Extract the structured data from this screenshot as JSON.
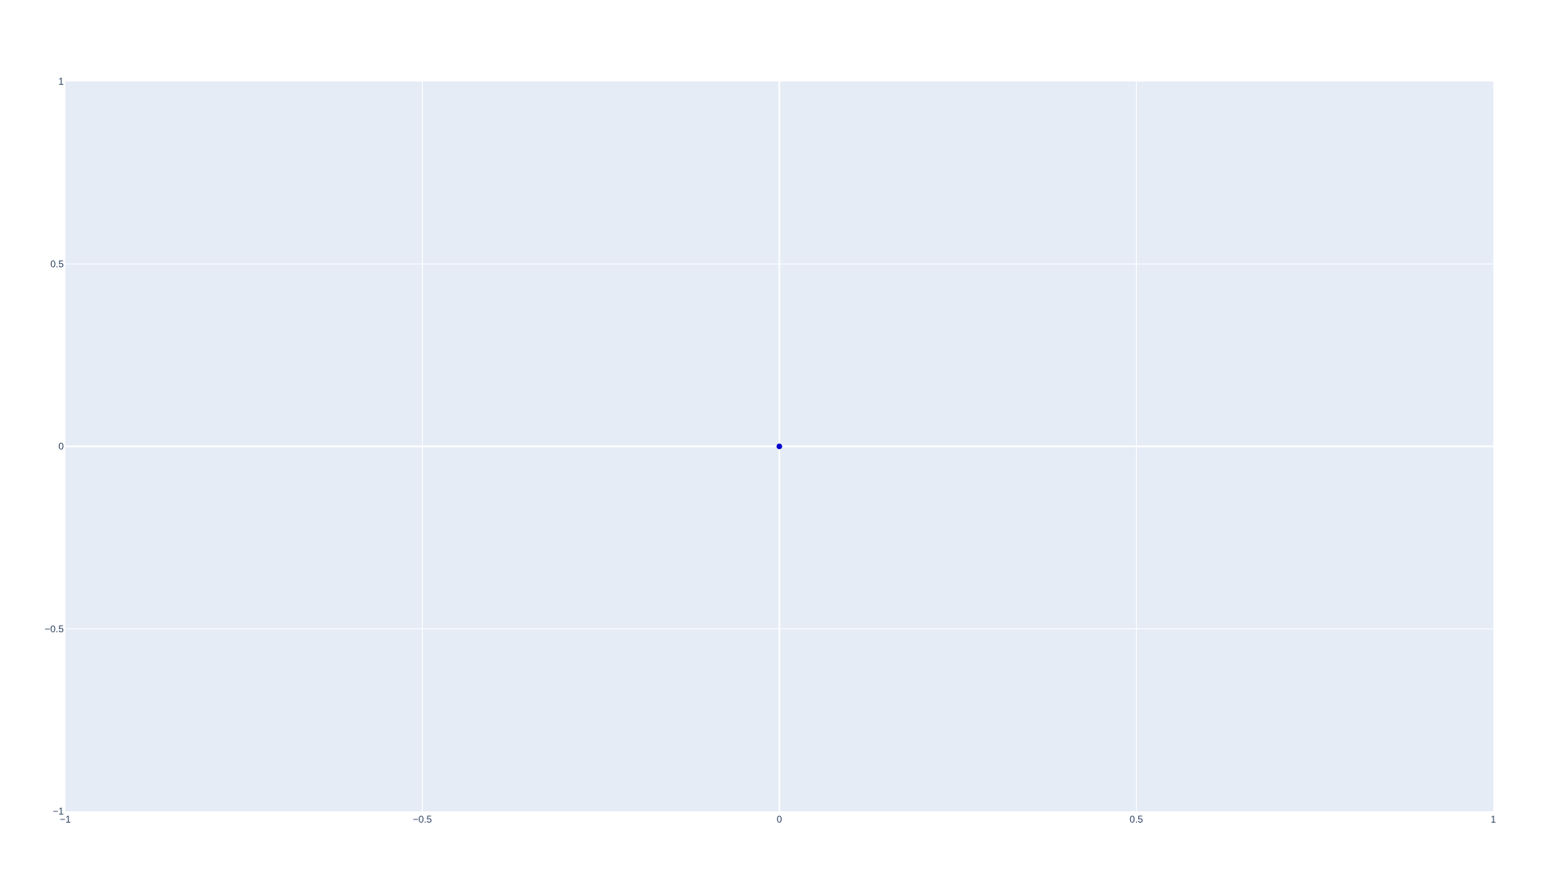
{
  "chart_data": {
    "type": "scatter",
    "title": "",
    "xlabel": "",
    "ylabel": "",
    "xlim": [
      -1,
      1
    ],
    "ylim": [
      -1,
      1
    ],
    "x_ticks": [
      {
        "value": -1,
        "label": "−1"
      },
      {
        "value": -0.5,
        "label": "−0.5"
      },
      {
        "value": 0,
        "label": "0"
      },
      {
        "value": 0.5,
        "label": "0.5"
      },
      {
        "value": 1,
        "label": "1"
      }
    ],
    "y_ticks": [
      {
        "value": -1,
        "label": "−1"
      },
      {
        "value": -0.5,
        "label": "−0.5"
      },
      {
        "value": 0,
        "label": "0"
      },
      {
        "value": 0.5,
        "label": "0.5"
      },
      {
        "value": 1,
        "label": "1"
      }
    ],
    "grid": true,
    "legend": "none",
    "series": [
      {
        "points": [
          {
            "x": 0,
            "y": 0
          }
        ],
        "color": "#0000cc"
      }
    ],
    "colors": {
      "plot_background": "#e5ecf6",
      "grid": "#ffffff",
      "tick_text": "#2a3f5f"
    }
  }
}
